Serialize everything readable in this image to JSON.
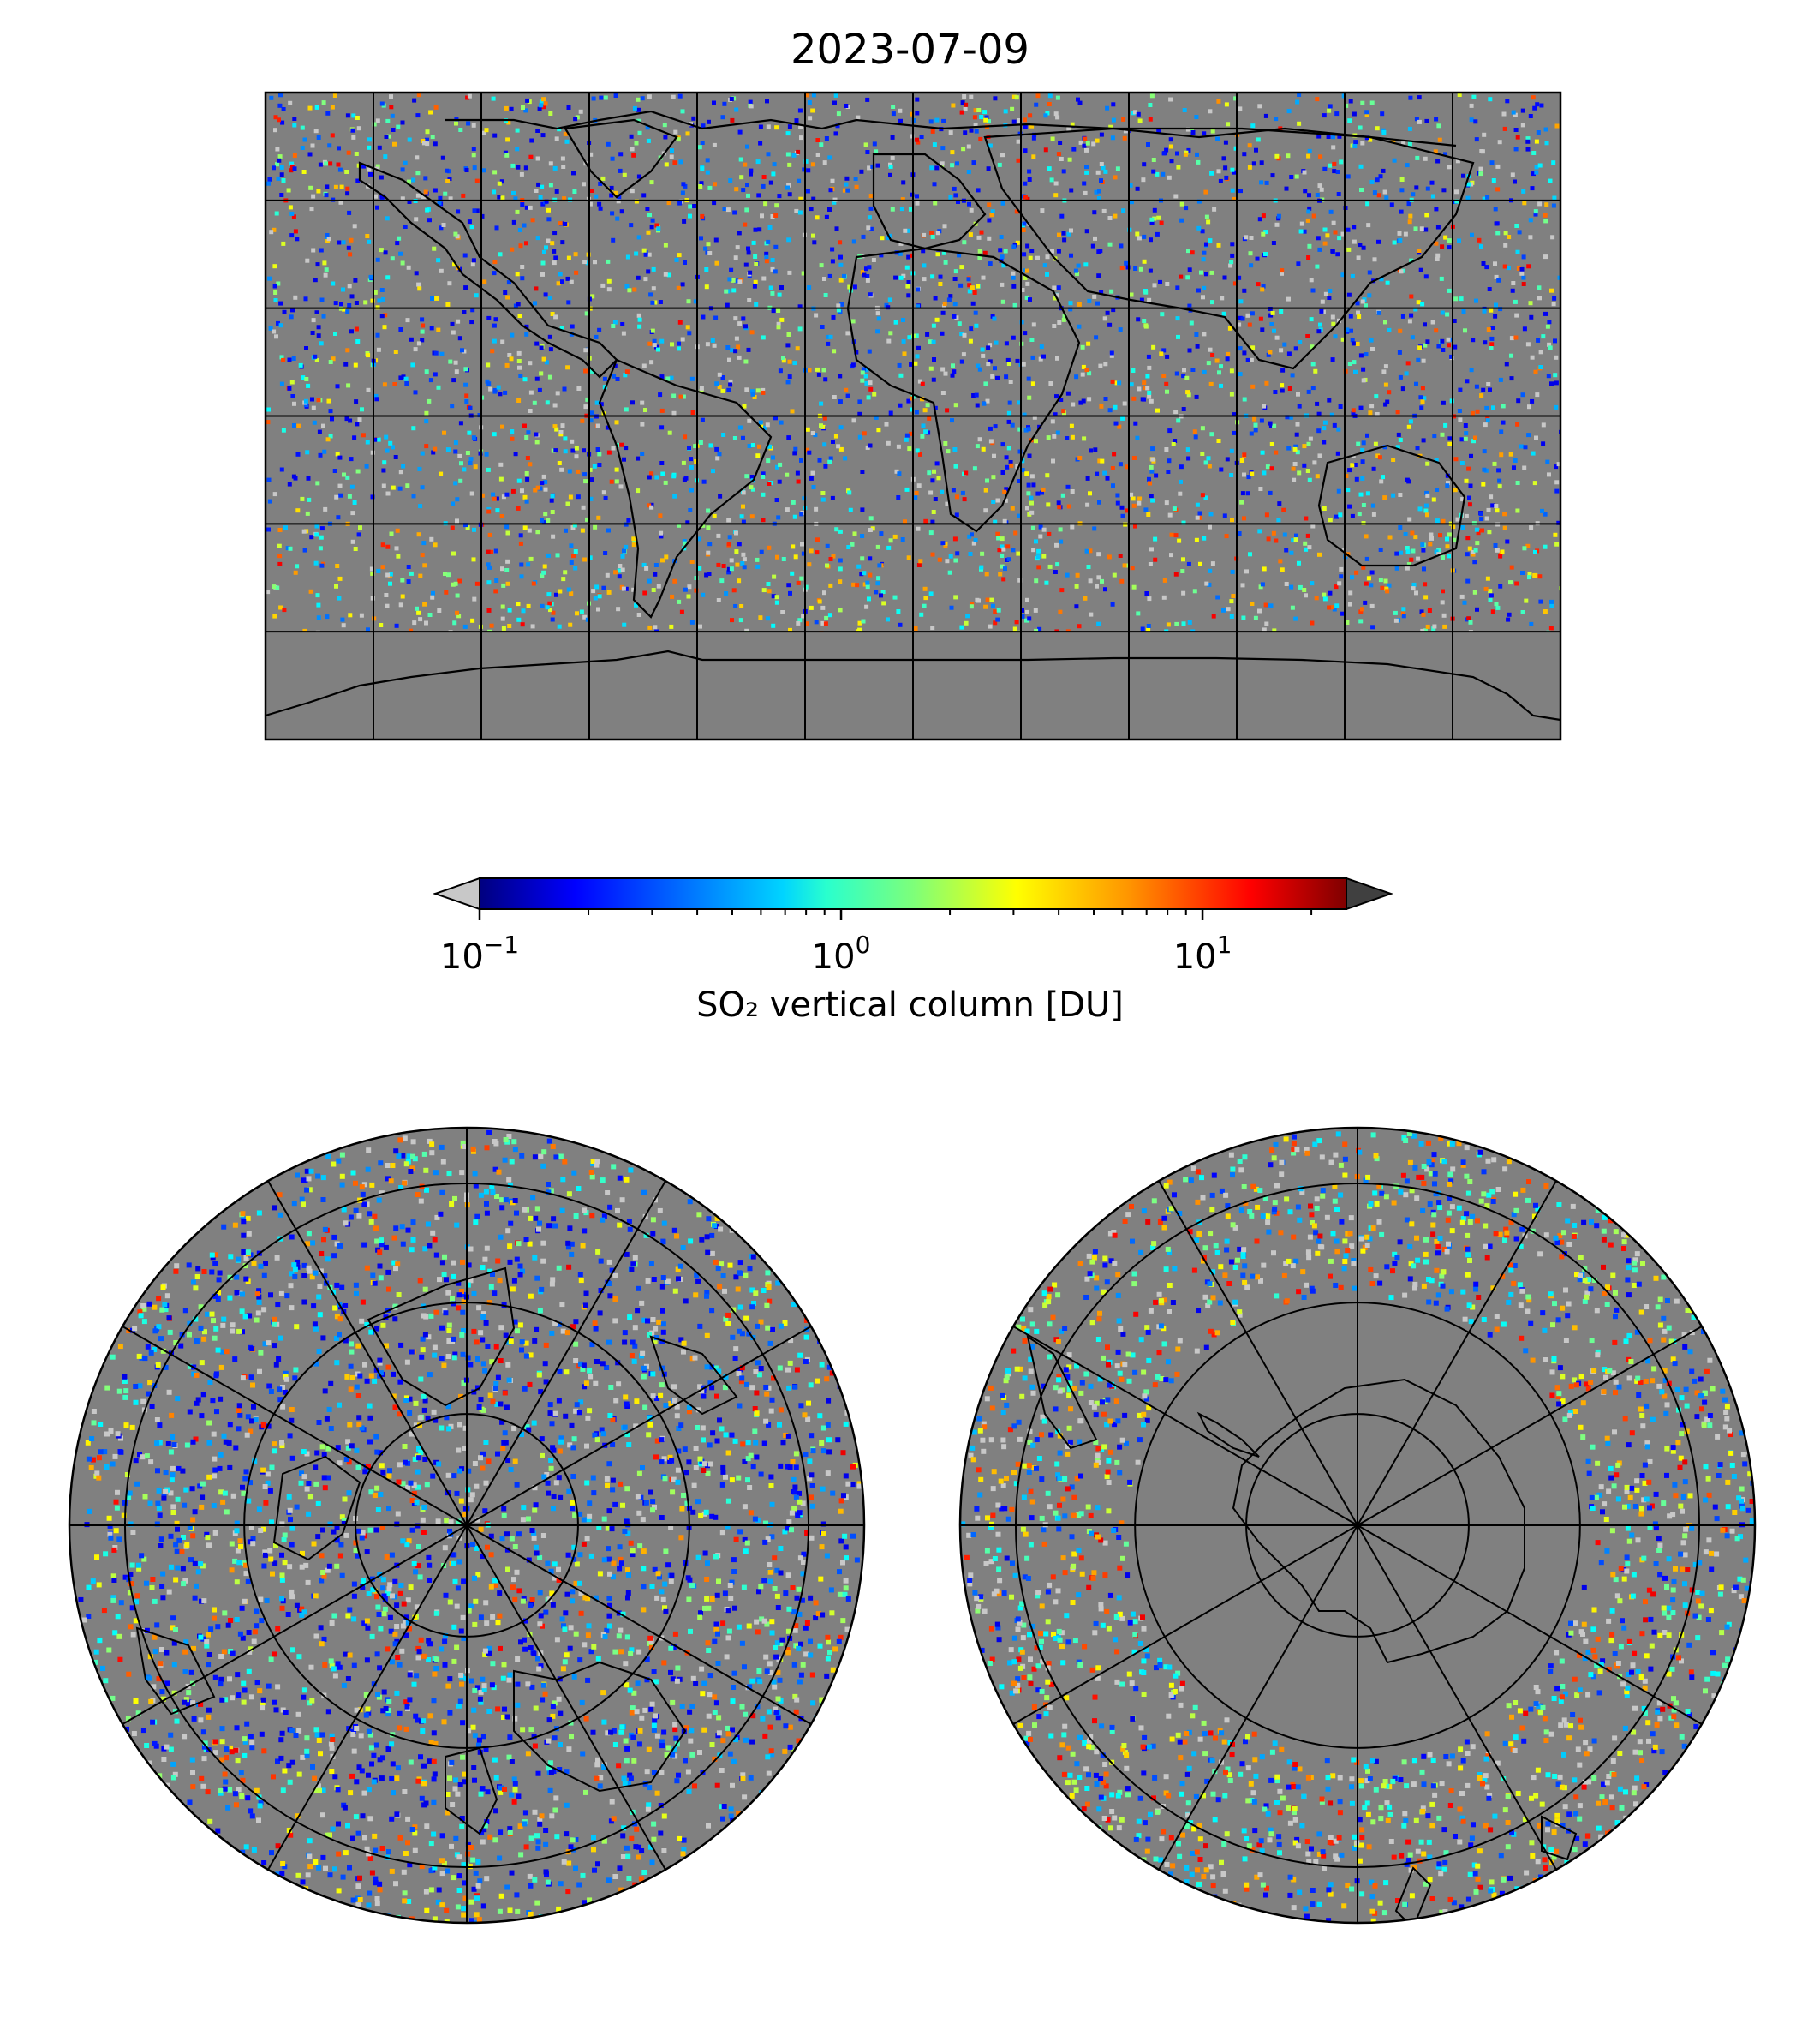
{
  "title": "2023-07-09",
  "colorbar": {
    "label": "SO₂ vertical column [DU]",
    "scale": "log",
    "range": [
      0.1,
      25
    ],
    "ticks": [
      {
        "value": 0.1,
        "base": "10",
        "exp": "−1"
      },
      {
        "value": 1,
        "base": "10",
        "exp": "0"
      },
      {
        "value": 10,
        "base": "10",
        "exp": "1"
      }
    ],
    "under_color": "#c8c8c8",
    "over_color": "#404040",
    "colormap": "jet"
  },
  "maps": [
    {
      "id": "global",
      "projection": "PlateCarree",
      "gridlines_lon_step_deg": 30,
      "gridlines_lat_step_deg": 30,
      "background": "#808080"
    },
    {
      "id": "north-polar",
      "projection": "NorthPolarStereo",
      "background": "#808080"
    },
    {
      "id": "south-polar",
      "projection": "SouthPolarStereo",
      "background": "#808080"
    }
  ]
}
